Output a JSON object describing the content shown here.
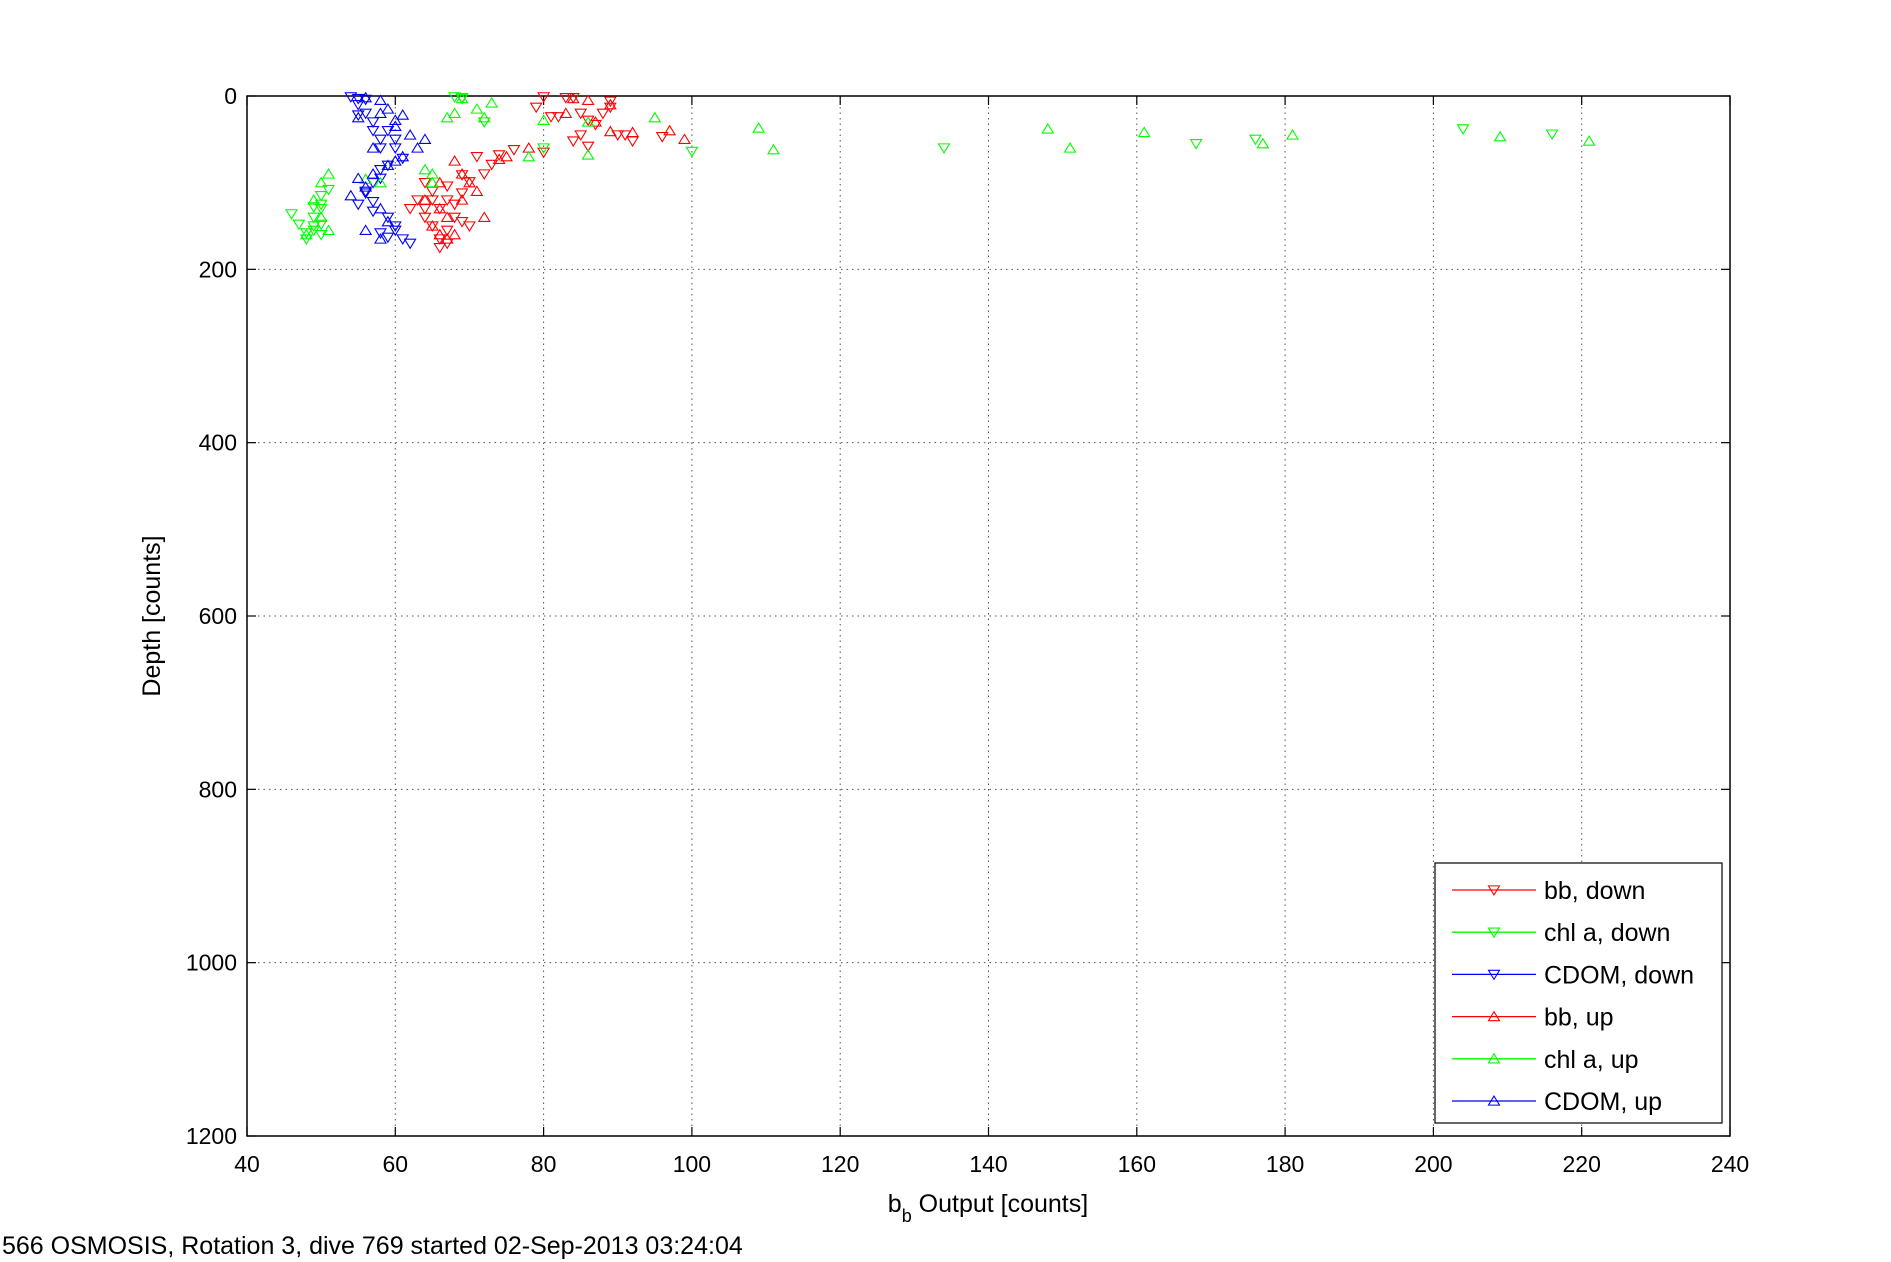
{
  "chart_data": {
    "type": "scatter",
    "title": "",
    "xlabel": {
      "main": "b",
      "sub": "b",
      "rest": " Output [counts]"
    },
    "ylabel": "Depth [counts]",
    "xlim": [
      40,
      240
    ],
    "ylim": [
      0,
      1200
    ],
    "y_reversed": true,
    "x_ticks": [
      40,
      60,
      80,
      100,
      120,
      140,
      160,
      180,
      200,
      220,
      240
    ],
    "y_ticks": [
      0,
      200,
      400,
      600,
      800,
      1000,
      1200
    ],
    "grid": true,
    "legend_position": "bottom-right",
    "caption": "566 OSMOSIS, Rotation 3, dive 769 started 02-Sep-2013 03:24:04",
    "series": [
      {
        "name": "bb, down",
        "color": "#ff0000",
        "marker": "triangle-down",
        "points": [
          [
            80,
            1
          ],
          [
            83,
            2
          ],
          [
            84,
            2
          ],
          [
            85,
            20
          ],
          [
            86,
            28
          ],
          [
            89,
            6
          ],
          [
            89,
            13
          ],
          [
            88,
            20
          ],
          [
            82,
            24
          ],
          [
            81,
            24
          ],
          [
            79,
            13
          ],
          [
            85,
            45
          ],
          [
            87,
            33
          ],
          [
            90,
            45
          ],
          [
            92,
            52
          ],
          [
            96,
            47
          ],
          [
            91,
            45
          ],
          [
            84,
            52
          ],
          [
            86,
            58
          ],
          [
            80,
            65
          ],
          [
            76,
            62
          ],
          [
            74,
            68
          ],
          [
            73,
            79
          ],
          [
            72,
            90
          ],
          [
            71,
            70
          ],
          [
            69,
            91
          ],
          [
            70,
            99
          ],
          [
            69,
            112
          ],
          [
            67,
            104
          ],
          [
            67,
            120
          ],
          [
            66,
            130
          ],
          [
            65,
            120
          ],
          [
            65,
            110
          ],
          [
            64,
            130
          ],
          [
            64,
            140
          ],
          [
            63,
            120
          ],
          [
            62,
            130
          ],
          [
            65,
            150
          ],
          [
            66,
            165
          ],
          [
            67,
            155
          ],
          [
            68,
            140
          ],
          [
            69,
            145
          ],
          [
            70,
            150
          ],
          [
            67,
            170
          ],
          [
            66,
            175
          ],
          [
            68,
            125
          ],
          [
            64,
            100
          ]
        ]
      },
      {
        "name": "chl a, down",
        "color": "#00ff00",
        "marker": "triangle-down",
        "points": [
          [
            68,
            1
          ],
          [
            69,
            2
          ],
          [
            69,
            3
          ],
          [
            72,
            30
          ],
          [
            80,
            60
          ],
          [
            100,
            64
          ],
          [
            134,
            60
          ],
          [
            168,
            55
          ],
          [
            176,
            50
          ],
          [
            204,
            38
          ],
          [
            216,
            44
          ],
          [
            46,
            136
          ],
          [
            47,
            148
          ],
          [
            48,
            158
          ],
          [
            48,
            165
          ],
          [
            49,
            155
          ],
          [
            50,
            148
          ],
          [
            49,
            128
          ],
          [
            50,
            115
          ],
          [
            51,
            108
          ],
          [
            50,
            125
          ],
          [
            49,
            140
          ],
          [
            50,
            160
          ],
          [
            49,
            150
          ],
          [
            50,
            130
          ]
        ]
      },
      {
        "name": "CDOM, down",
        "color": "#0000ff",
        "marker": "triangle-down",
        "points": [
          [
            54,
            1
          ],
          [
            55,
            3
          ],
          [
            56,
            4
          ],
          [
            55,
            10
          ],
          [
            56,
            20
          ],
          [
            57,
            30
          ],
          [
            59,
            40
          ],
          [
            60,
            50
          ],
          [
            58,
            60
          ],
          [
            61,
            72
          ],
          [
            58,
            85
          ],
          [
            57,
            100
          ],
          [
            56,
            110
          ],
          [
            55,
            125
          ],
          [
            57,
            133
          ],
          [
            59,
            140
          ],
          [
            60,
            150
          ],
          [
            58,
            158
          ],
          [
            59,
            163
          ],
          [
            61,
            165
          ],
          [
            62,
            170
          ],
          [
            60,
            155
          ],
          [
            57,
            122
          ],
          [
            56,
            112
          ],
          [
            58,
            95
          ],
          [
            59,
            80
          ],
          [
            60,
            60
          ],
          [
            58,
            50
          ],
          [
            57,
            40
          ],
          [
            55,
            22
          ]
        ]
      },
      {
        "name": "bb, up",
        "color": "#ff0000",
        "marker": "triangle-up",
        "points": [
          [
            84,
            3
          ],
          [
            86,
            5
          ],
          [
            89,
            10
          ],
          [
            97,
            40
          ],
          [
            99,
            50
          ],
          [
            92,
            42
          ],
          [
            89,
            41
          ],
          [
            87,
            30
          ],
          [
            83,
            20
          ],
          [
            78,
            60
          ],
          [
            75,
            70
          ],
          [
            74,
            73
          ],
          [
            68,
            75
          ],
          [
            69,
            90
          ],
          [
            66,
            100
          ],
          [
            64,
            120
          ],
          [
            66,
            130
          ],
          [
            67,
            140
          ],
          [
            65,
            150
          ],
          [
            68,
            160
          ],
          [
            67,
            165
          ],
          [
            69,
            120
          ],
          [
            70,
            100
          ],
          [
            71,
            110
          ],
          [
            72,
            140
          ],
          [
            66,
            160
          ]
        ]
      },
      {
        "name": "chl a, up",
        "color": "#00ff00",
        "marker": "triangle-up",
        "points": [
          [
            69,
            3
          ],
          [
            73,
            8
          ],
          [
            71,
            15
          ],
          [
            72,
            25
          ],
          [
            80,
            28
          ],
          [
            86,
            30
          ],
          [
            95,
            25
          ],
          [
            109,
            37
          ],
          [
            111,
            62
          ],
          [
            148,
            38
          ],
          [
            151,
            60
          ],
          [
            161,
            42
          ],
          [
            177,
            55
          ],
          [
            181,
            45
          ],
          [
            209,
            47
          ],
          [
            221,
            52
          ],
          [
            86,
            68
          ],
          [
            78,
            70
          ],
          [
            64,
            85
          ],
          [
            65,
            90
          ],
          [
            65,
            100
          ],
          [
            56,
            96
          ],
          [
            58,
            100
          ],
          [
            51,
            90
          ],
          [
            50,
            100
          ],
          [
            49,
            120
          ],
          [
            50,
            140
          ],
          [
            51,
            155
          ],
          [
            48,
            160
          ],
          [
            68,
            20
          ],
          [
            67,
            25
          ]
        ]
      },
      {
        "name": "CDOM, up",
        "color": "#0000ff",
        "marker": "triangle-up",
        "points": [
          [
            56,
            2
          ],
          [
            58,
            5
          ],
          [
            59,
            15
          ],
          [
            61,
            22
          ],
          [
            60,
            35
          ],
          [
            62,
            45
          ],
          [
            64,
            50
          ],
          [
            63,
            60
          ],
          [
            61,
            70
          ],
          [
            59,
            80
          ],
          [
            57,
            90
          ],
          [
            55,
            95
          ],
          [
            56,
            105
          ],
          [
            54,
            115
          ],
          [
            58,
            130
          ],
          [
            59,
            145
          ],
          [
            56,
            155
          ],
          [
            58,
            165
          ],
          [
            60,
            75
          ],
          [
            57,
            60
          ],
          [
            58,
            20
          ],
          [
            60,
            28
          ],
          [
            55,
            25
          ]
        ]
      }
    ]
  }
}
